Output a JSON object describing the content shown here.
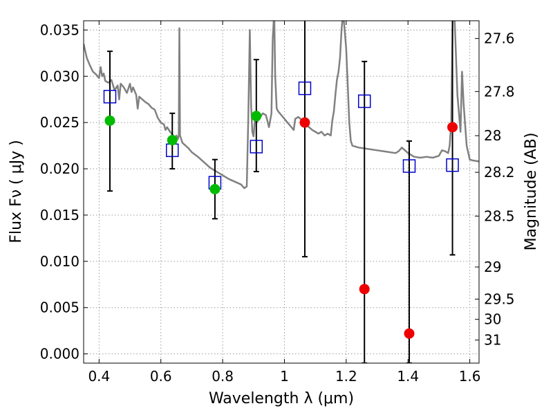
{
  "chart_data": {
    "type": "scatter",
    "xlabel": "Wavelength  λ (μm)",
    "ylabel": "Flux  Fν  ( μJy )",
    "y2label": "Magnitude (AB)",
    "xlim": [
      0.35,
      1.63
    ],
    "ylim": [
      -0.001,
      0.036
    ],
    "grid": true,
    "x_ticks": [
      0.4,
      0.6,
      0.8,
      1.0,
      1.2,
      1.4,
      1.6
    ],
    "x_tick_labels": [
      "0.4",
      "0.6",
      "0.8",
      "1",
      "1.2",
      "1.4",
      "1.6"
    ],
    "y_ticks": [
      0.0,
      0.005,
      0.01,
      0.015,
      0.02,
      0.025,
      0.03,
      0.035
    ],
    "y_tick_labels": [
      "0.000",
      "0.005",
      "0.010",
      "0.015",
      "0.020",
      "0.025",
      "0.030",
      "0.035"
    ],
    "y2_ticks": [
      {
        "label": "27.6",
        "flux": 0.03408
      },
      {
        "label": "27.8",
        "flux": 0.02835
      },
      {
        "label": "28",
        "flux": 0.02358
      },
      {
        "label": "28.2",
        "flux": 0.01962
      },
      {
        "label": "28.5",
        "flux": 0.01489
      },
      {
        "label": "29",
        "flux": 0.00939
      },
      {
        "label": "29.5",
        "flux": 0.00592
      },
      {
        "label": "30",
        "flux": 0.00373
      },
      {
        "label": "31",
        "flux": 0.00149
      }
    ],
    "colors": {
      "model_line": "#808080",
      "detected": "#00bb00",
      "upper_limit": "#ee0000",
      "model_box": "#0000cc",
      "errorbar": "#000000",
      "grid": "#9a9a9a"
    },
    "series": [
      {
        "type": "line",
        "points": [
          [
            0.35,
            0.0335
          ],
          [
            0.36,
            0.032
          ],
          [
            0.37,
            0.0312
          ],
          [
            0.38,
            0.0305
          ],
          [
            0.39,
            0.0302
          ],
          [
            0.4,
            0.0298
          ],
          [
            0.405,
            0.031
          ],
          [
            0.41,
            0.03
          ],
          [
            0.415,
            0.0303
          ],
          [
            0.42,
            0.0295
          ],
          [
            0.43,
            0.0293
          ],
          [
            0.44,
            0.0296
          ],
          [
            0.45,
            0.0285
          ],
          [
            0.46,
            0.029
          ],
          [
            0.465,
            0.0275
          ],
          [
            0.47,
            0.0292
          ],
          [
            0.48,
            0.0288
          ],
          [
            0.49,
            0.0282
          ],
          [
            0.5,
            0.0292
          ],
          [
            0.505,
            0.0283
          ],
          [
            0.51,
            0.0288
          ],
          [
            0.52,
            0.028
          ],
          [
            0.525,
            0.0265
          ],
          [
            0.53,
            0.0278
          ],
          [
            0.54,
            0.0275
          ],
          [
            0.55,
            0.0272
          ],
          [
            0.56,
            0.027
          ],
          [
            0.57,
            0.0266
          ],
          [
            0.58,
            0.0264
          ],
          [
            0.59,
            0.0255
          ],
          [
            0.6,
            0.025
          ],
          [
            0.61,
            0.0248
          ],
          [
            0.615,
            0.0242
          ],
          [
            0.62,
            0.0245
          ],
          [
            0.63,
            0.024
          ],
          [
            0.64,
            0.0236
          ],
          [
            0.645,
            0.023
          ],
          [
            0.65,
            0.0236
          ],
          [
            0.655,
            0.0232
          ],
          [
            0.658,
            0.0236
          ],
          [
            0.66,
            0.0352
          ],
          [
            0.662,
            0.0236
          ],
          [
            0.67,
            0.0228
          ],
          [
            0.68,
            0.0225
          ],
          [
            0.69,
            0.0222
          ],
          [
            0.7,
            0.0218
          ],
          [
            0.72,
            0.0213
          ],
          [
            0.74,
            0.0207
          ],
          [
            0.76,
            0.0201
          ],
          [
            0.78,
            0.0197
          ],
          [
            0.8,
            0.0193
          ],
          [
            0.82,
            0.0189
          ],
          [
            0.84,
            0.0186
          ],
          [
            0.86,
            0.0183
          ],
          [
            0.87,
            0.0179
          ],
          [
            0.878,
            0.0181
          ],
          [
            0.883,
            0.0255
          ],
          [
            0.888,
            0.035
          ],
          [
            0.892,
            0.027
          ],
          [
            0.896,
            0.024
          ],
          [
            0.9,
            0.0235
          ],
          [
            0.905,
            0.0255
          ],
          [
            0.91,
            0.025
          ],
          [
            0.92,
            0.0255
          ],
          [
            0.93,
            0.026
          ],
          [
            0.94,
            0.0258
          ],
          [
            0.95,
            0.0245
          ],
          [
            0.958,
            0.026
          ],
          [
            0.962,
            0.034
          ],
          [
            0.967,
            0.037
          ],
          [
            0.97,
            0.03
          ],
          [
            0.975,
            0.0265
          ],
          [
            0.98,
            0.0262
          ],
          [
            0.99,
            0.0258
          ],
          [
            1.0,
            0.0254
          ],
          [
            1.01,
            0.025
          ],
          [
            1.02,
            0.0246
          ],
          [
            1.03,
            0.0242
          ],
          [
            1.035,
            0.0254
          ],
          [
            1.045,
            0.0256
          ],
          [
            1.055,
            0.0253
          ],
          [
            1.065,
            0.025
          ],
          [
            1.07,
            0.0247
          ],
          [
            1.08,
            0.0245
          ],
          [
            1.09,
            0.0242
          ],
          [
            1.1,
            0.024
          ],
          [
            1.11,
            0.0238
          ],
          [
            1.12,
            0.024
          ],
          [
            1.13,
            0.0236
          ],
          [
            1.14,
            0.0238
          ],
          [
            1.15,
            0.0236
          ],
          [
            1.155,
            0.0252
          ],
          [
            1.16,
            0.0262
          ],
          [
            1.165,
            0.028
          ],
          [
            1.17,
            0.0296
          ],
          [
            1.175,
            0.0305
          ],
          [
            1.18,
            0.032
          ],
          [
            1.185,
            0.035
          ],
          [
            1.19,
            0.037
          ],
          [
            1.195,
            0.035
          ],
          [
            1.2,
            0.033
          ],
          [
            1.205,
            0.029
          ],
          [
            1.21,
            0.025
          ],
          [
            1.215,
            0.023
          ],
          [
            1.22,
            0.0225
          ],
          [
            1.24,
            0.0223
          ],
          [
            1.26,
            0.0222
          ],
          [
            1.3,
            0.022
          ],
          [
            1.32,
            0.0219
          ],
          [
            1.34,
            0.0218
          ],
          [
            1.36,
            0.0217
          ],
          [
            1.37,
            0.0219
          ],
          [
            1.38,
            0.0223
          ],
          [
            1.39,
            0.022
          ],
          [
            1.4,
            0.0217
          ],
          [
            1.42,
            0.0213
          ],
          [
            1.44,
            0.0212
          ],
          [
            1.46,
            0.0213
          ],
          [
            1.48,
            0.0212
          ],
          [
            1.5,
            0.0214
          ],
          [
            1.51,
            0.022
          ],
          [
            1.52,
            0.0219
          ],
          [
            1.53,
            0.0217
          ],
          [
            1.535,
            0.0225
          ],
          [
            1.54,
            0.025
          ],
          [
            1.545,
            0.037
          ],
          [
            1.55,
            0.037
          ],
          [
            1.56,
            0.028
          ],
          [
            1.57,
            0.024
          ],
          [
            1.575,
            0.0305
          ],
          [
            1.58,
            0.027
          ],
          [
            1.59,
            0.0225
          ],
          [
            1.6,
            0.021
          ],
          [
            1.61,
            0.0209
          ],
          [
            1.63,
            0.0208
          ]
        ]
      },
      {
        "type": "errorbar",
        "points": [
          {
            "x": 0.435,
            "lo": 0.0176,
            "hi": 0.0327
          },
          {
            "x": 0.637,
            "lo": 0.02,
            "hi": 0.026
          },
          {
            "x": 0.775,
            "lo": 0.0146,
            "hi": 0.021
          },
          {
            "x": 0.909,
            "lo": 0.0197,
            "hi": 0.0318
          },
          {
            "x": 1.066,
            "lo": 0.0105,
            "hi": 0.037
          },
          {
            "x": 1.259,
            "lo": -0.001,
            "hi": 0.0316
          },
          {
            "x": 1.404,
            "lo": -0.001,
            "hi": 0.023
          },
          {
            "x": 1.544,
            "lo": 0.0107,
            "hi": 0.037
          }
        ]
      },
      {
        "type": "square",
        "points": [
          {
            "x": 0.435,
            "y": 0.0278
          },
          {
            "x": 0.637,
            "y": 0.022
          },
          {
            "x": 0.775,
            "y": 0.0185
          },
          {
            "x": 0.909,
            "y": 0.0224
          },
          {
            "x": 1.066,
            "y": 0.0287
          },
          {
            "x": 1.259,
            "y": 0.0273
          },
          {
            "x": 1.404,
            "y": 0.0203
          },
          {
            "x": 1.544,
            "y": 0.0204
          }
        ]
      },
      {
        "type": "circle",
        "points": [
          {
            "x": 0.435,
            "y": 0.0252
          },
          {
            "x": 0.637,
            "y": 0.0231
          },
          {
            "x": 0.775,
            "y": 0.0178
          },
          {
            "x": 0.909,
            "y": 0.0257
          }
        ]
      },
      {
        "type": "circle",
        "points": [
          {
            "x": 1.066,
            "y": 0.025
          },
          {
            "x": 1.259,
            "y": 0.007
          },
          {
            "x": 1.404,
            "y": 0.0022
          },
          {
            "x": 1.544,
            "y": 0.0245
          }
        ]
      }
    ]
  }
}
